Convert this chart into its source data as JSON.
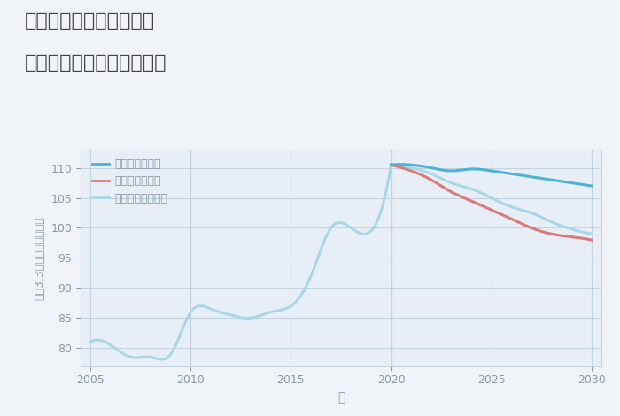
{
  "title_line1": "兵庫県姫路市西夢前台の",
  "title_line2": "中古マンションの価格推移",
  "xlabel": "年",
  "ylabel": "坪（3.3㎡）単価（万円）",
  "bg_color": "#f0f4f8",
  "plot_bg_color": "#e8eef5",
  "grid_color": "#c5d3e0",
  "title_color": "#444444",
  "axis_color": "#8899aa",
  "legend_labels": [
    "グッドシナリオ",
    "バッドシナリオ",
    "ノーマルシナリオ"
  ],
  "good_color": "#4db3d4",
  "bad_color": "#d97a7a",
  "normal_color": "#a8d8e8",
  "years_historical": [
    2005,
    2006,
    2007,
    2008,
    2009,
    2010,
    2011,
    2012,
    2013,
    2014,
    2015,
    2016,
    2017,
    2018,
    2019,
    2020
  ],
  "values_historical": [
    81,
    80.5,
    78.5,
    78.5,
    79,
    86,
    86.5,
    85.5,
    85,
    86,
    87,
    92,
    100,
    100,
    99.5,
    110.5
  ],
  "years_future": [
    2020,
    2021,
    2022,
    2023,
    2024,
    2025,
    2026,
    2027,
    2028,
    2029,
    2030
  ],
  "good_values": [
    110.5,
    110.5,
    110,
    109.5,
    109.8,
    109.5,
    109.0,
    108.5,
    108.0,
    107.5,
    107.0
  ],
  "bad_values": [
    110.5,
    109.5,
    108.0,
    106.0,
    104.5,
    103.0,
    101.5,
    100.0,
    99.0,
    98.5,
    98.0
  ],
  "normal_values": [
    110.5,
    110.0,
    109.0,
    107.5,
    106.5,
    105.0,
    103.5,
    102.5,
    101.0,
    99.8,
    99.0
  ],
  "ylim": [
    77,
    113
  ],
  "yticks": [
    80,
    85,
    90,
    95,
    100,
    105,
    110
  ],
  "xlim": [
    2004.5,
    2030.5
  ],
  "xticks": [
    2005,
    2010,
    2015,
    2020,
    2025,
    2030
  ]
}
